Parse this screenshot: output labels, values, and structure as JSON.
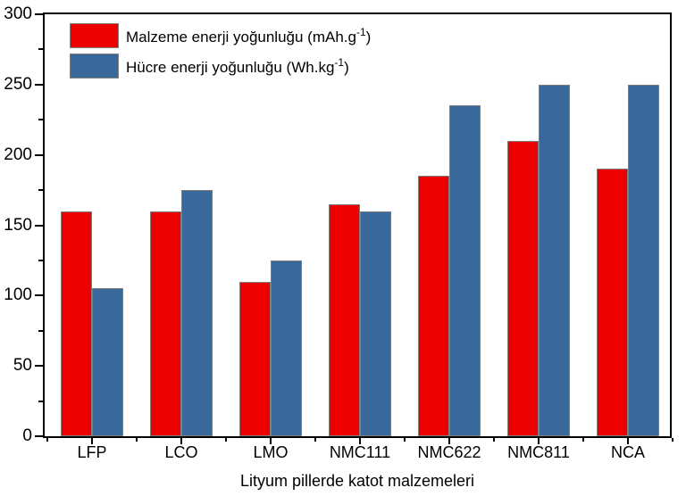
{
  "figure": {
    "background": "#FFFFFF",
    "axis_color": "#000000",
    "text_color": "#000000",
    "bar_outline_color": "#7F7F7F"
  },
  "chart_data": {
    "type": "bar",
    "categories": [
      "LFP",
      "LCO",
      "LMO",
      "NMC111",
      "NMC622",
      "NMC811",
      "NCA"
    ],
    "series": [
      {
        "name": "Malzeme enerji yoğunluğu (mAh.g⁻¹)",
        "label_pre": "Malzeme enerji yoğunluğu (mAh.g",
        "label_sup": "-1",
        "label_post": ")",
        "color": "#EC0000",
        "values": [
          160,
          160,
          110,
          165,
          185,
          210,
          190
        ]
      },
      {
        "name": "Hücre enerji yoğunluğu (Wh.kg⁻¹)",
        "label_pre": "Hücre enerji yoğunluğu (Wh.kg",
        "label_sup": "-1",
        "label_post": ")",
        "color": "#39689B",
        "values": [
          105,
          175,
          125,
          160,
          235,
          250,
          250
        ]
      }
    ],
    "title": "",
    "xlabel": "Lityum pillerde katot malzemeleri",
    "ylabel": "",
    "ylim": [
      0,
      300
    ],
    "yticks_major": [
      0,
      50,
      100,
      150,
      200,
      250,
      300
    ],
    "yticks_minor": [
      25,
      75,
      125,
      175,
      225,
      275
    ],
    "grid": false,
    "legend_position": "top-left"
  }
}
